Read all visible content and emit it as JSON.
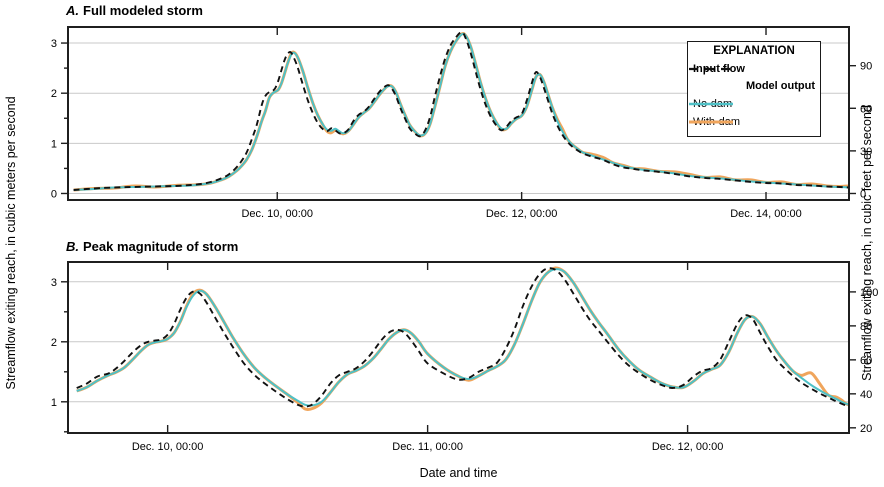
{
  "figure": {
    "ylabel_left": "Streamflow exiting reach, in cubic meters per second",
    "ylabel_right": "Streamflow exiting reach, in cubic feet per second",
    "xlabel": "Date and time",
    "colors": {
      "input": "#111111",
      "no_dam": "#4ec1c7",
      "with_dam": "#f0a55c",
      "grid": "#c9c9c9",
      "axis": "#1f1f1f",
      "text": "#000000"
    }
  },
  "legend": {
    "title": "EXPLANATION",
    "input_label": "Input flow",
    "group_label": "Model output",
    "no_dam_label": "No-dam",
    "with_dam_label": "With-dam"
  },
  "chart_data": [
    {
      "id": "a",
      "type": "line",
      "title_letter": "A.",
      "title_text": "Full modeled storm",
      "x_unit": "hours since Dec. 8, 00:00",
      "xlim": [
        6.9,
        160.3
      ],
      "ylim": [
        -0.13,
        3.32
      ],
      "ylim_right_cfs": [
        -4.6,
        117.2
      ],
      "cfs_per_cms": 35.3147,
      "grid_values": [
        0,
        1,
        2,
        3
      ],
      "yticks_left": [
        0,
        1,
        2,
        3
      ],
      "yticks_left_minor": [
        0.5,
        1.5,
        2.5
      ],
      "yticks_right_cfs": [
        0,
        30,
        60,
        90
      ],
      "xticks": [
        {
          "t": 48,
          "label": "Dec. 10, 00:00"
        },
        {
          "t": 96,
          "label": "Dec. 12, 00:00"
        },
        {
          "t": 144,
          "label": "Dec. 14, 00:00"
        }
      ],
      "x": [
        8,
        12,
        16,
        20,
        24,
        28,
        31,
        33,
        35,
        37,
        38.5,
        40,
        41,
        42,
        43,
        44,
        45,
        45.7,
        46.4,
        47,
        47.6,
        48.2,
        48.8,
        49.4,
        50,
        50.6,
        51.2,
        52,
        53,
        54,
        55,
        56,
        57,
        57.8,
        58.6,
        59.4,
        60.2,
        61,
        62,
        63,
        64,
        65,
        66,
        67,
        68,
        69,
        69.8,
        70.6,
        71.4,
        72.2,
        73,
        74,
        75,
        76,
        77,
        78,
        79,
        80,
        81,
        82,
        83,
        84.2,
        85,
        86,
        87,
        88,
        89,
        90,
        91,
        92,
        93,
        94,
        95,
        96,
        97,
        98,
        98.8,
        99.6,
        100.4,
        101.2,
        102,
        103,
        104,
        105,
        106,
        107,
        108,
        110,
        112,
        114,
        116,
        118,
        120,
        123,
        126,
        129,
        132,
        135,
        138,
        141,
        144,
        147,
        150,
        153,
        156,
        158.5,
        160.2
      ],
      "series": [
        {
          "key": "with_dam",
          "name": "With-dam",
          "values": [
            0.07,
            0.1,
            0.11,
            0.15,
            0.13,
            0.16,
            0.17,
            0.18,
            0.21,
            0.27,
            0.34,
            0.45,
            0.55,
            0.68,
            0.87,
            1.14,
            1.46,
            1.65,
            1.9,
            1.99,
            2.03,
            2.07,
            2.19,
            2.38,
            2.58,
            2.76,
            2.82,
            2.72,
            2.45,
            2.11,
            1.8,
            1.55,
            1.36,
            1.24,
            1.21,
            1.26,
            1.22,
            1.19,
            1.25,
            1.38,
            1.52,
            1.61,
            1.69,
            1.82,
            1.96,
            2.08,
            2.15,
            2.13,
            2.0,
            1.78,
            1.59,
            1.37,
            1.24,
            1.15,
            1.19,
            1.38,
            1.75,
            2.15,
            2.55,
            2.83,
            3.02,
            3.18,
            3.15,
            2.93,
            2.57,
            2.19,
            1.87,
            1.61,
            1.42,
            1.28,
            1.29,
            1.4,
            1.49,
            1.55,
            1.73,
            2.06,
            2.32,
            2.37,
            2.22,
            1.97,
            1.72,
            1.48,
            1.29,
            1.08,
            0.97,
            0.89,
            0.82,
            0.78,
            0.72,
            0.61,
            0.56,
            0.5,
            0.49,
            0.44,
            0.43,
            0.38,
            0.32,
            0.33,
            0.27,
            0.27,
            0.22,
            0.23,
            0.18,
            0.19,
            0.15,
            0.14,
            0.15
          ]
        },
        {
          "key": "no_dam",
          "name": "No-dam",
          "values": [
            0.07,
            0.09,
            0.12,
            0.13,
            0.14,
            0.15,
            0.16,
            0.18,
            0.21,
            0.27,
            0.34,
            0.45,
            0.55,
            0.68,
            0.87,
            1.14,
            1.46,
            1.65,
            1.9,
            1.99,
            2.03,
            2.07,
            2.19,
            2.38,
            2.58,
            2.74,
            2.81,
            2.72,
            2.45,
            2.11,
            1.8,
            1.55,
            1.37,
            1.27,
            1.25,
            1.29,
            1.24,
            1.2,
            1.25,
            1.38,
            1.52,
            1.61,
            1.69,
            1.82,
            1.96,
            2.08,
            2.14,
            2.13,
            2.0,
            1.78,
            1.59,
            1.37,
            1.24,
            1.16,
            1.19,
            1.38,
            1.75,
            2.15,
            2.55,
            2.83,
            3.02,
            3.17,
            3.15,
            2.93,
            2.57,
            2.19,
            1.87,
            1.61,
            1.42,
            1.3,
            1.29,
            1.4,
            1.49,
            1.55,
            1.73,
            2.06,
            2.32,
            2.37,
            2.22,
            1.97,
            1.72,
            1.45,
            1.24,
            1.08,
            0.97,
            0.89,
            0.82,
            0.75,
            0.68,
            0.61,
            0.54,
            0.5,
            0.47,
            0.44,
            0.4,
            0.35,
            0.32,
            0.3,
            0.27,
            0.24,
            0.22,
            0.2,
            0.18,
            0.16,
            0.14,
            0.13,
            0.12
          ]
        },
        {
          "key": "input",
          "name": "Input flow",
          "values": [
            0.07,
            0.1,
            0.12,
            0.13,
            0.14,
            0.15,
            0.17,
            0.19,
            0.23,
            0.3,
            0.38,
            0.52,
            0.65,
            0.82,
            1.08,
            1.38,
            1.78,
            1.95,
            2.02,
            2.04,
            2.1,
            2.25,
            2.45,
            2.65,
            2.78,
            2.82,
            2.72,
            2.52,
            2.18,
            1.86,
            1.6,
            1.4,
            1.28,
            1.24,
            1.3,
            1.26,
            1.2,
            1.2,
            1.28,
            1.45,
            1.57,
            1.63,
            1.73,
            1.88,
            2.02,
            2.12,
            2.16,
            2.08,
            1.92,
            1.7,
            1.52,
            1.3,
            1.2,
            1.14,
            1.25,
            1.52,
            1.95,
            2.35,
            2.7,
            2.95,
            3.1,
            3.22,
            3.1,
            2.8,
            2.42,
            2.05,
            1.75,
            1.52,
            1.36,
            1.26,
            1.33,
            1.45,
            1.52,
            1.58,
            1.85,
            2.2,
            2.42,
            2.32,
            2.1,
            1.85,
            1.6,
            1.36,
            1.17,
            1.03,
            0.93,
            0.86,
            0.8,
            0.73,
            0.67,
            0.58,
            0.52,
            0.49,
            0.46,
            0.43,
            0.39,
            0.34,
            0.31,
            0.29,
            0.26,
            0.23,
            0.21,
            0.2,
            0.17,
            0.16,
            0.14,
            0.13,
            0.12
          ]
        }
      ]
    },
    {
      "id": "b",
      "type": "line",
      "title_letter": "B.",
      "title_text": "Peak magnitude of storm",
      "x_unit": "hours since Dec. 8, 00:00",
      "xlim": [
        38.8,
        110.9
      ],
      "ylim": [
        0.48,
        3.33
      ],
      "ylim_right_cfs": [
        17.0,
        117.6
      ],
      "cfs_per_cms": 35.3147,
      "grid_values": [
        1,
        2,
        3
      ],
      "yticks_left": [
        1,
        2,
        3
      ],
      "yticks_left_minor": [
        0.5,
        1.5,
        2.5
      ],
      "yticks_right_cfs": [
        20,
        40,
        60,
        80,
        100
      ],
      "xticks": [
        {
          "t": 48,
          "label": "Dec. 10, 00:00"
        },
        {
          "t": 72,
          "label": "Dec. 11, 00:00"
        },
        {
          "t": 96,
          "label": "Dec. 12, 00:00"
        }
      ],
      "x": [
        39.6,
        40.5,
        41.5,
        42.5,
        43.2,
        44,
        44.8,
        45.6,
        46.2,
        46.8,
        47.4,
        48,
        48.6,
        49.2,
        49.8,
        50.4,
        51,
        51.6,
        52.4,
        53.2,
        54,
        55,
        56,
        57,
        58,
        59,
        60,
        60.7,
        61.4,
        62.2,
        63,
        63.8,
        64.6,
        65.4,
        66.2,
        67,
        67.7,
        68.4,
        69.1,
        69.8,
        70.5,
        71.2,
        72,
        73.5,
        74.8,
        75.8,
        76.7,
        77.6,
        78.4,
        79.2,
        80,
        80.8,
        81.6,
        82.3,
        83,
        83.8,
        84.6,
        85.4,
        86.2,
        87,
        87.8,
        88.6,
        89.6,
        90.6,
        91.6,
        92.6,
        93.6,
        94.6,
        95.6,
        96.6,
        97.4,
        98.2,
        99,
        99.8,
        100.6,
        101.3,
        102,
        102.7,
        103.4,
        104.2,
        105,
        105.8,
        106.5,
        107.4,
        108.2,
        109,
        109.7,
        110.2,
        110.6,
        110.9
      ],
      "series": [
        {
          "key": "with_dam",
          "name": "With-dam",
          "values": [
            1.18,
            1.24,
            1.35,
            1.44,
            1.49,
            1.57,
            1.71,
            1.86,
            1.95,
            1.99,
            2.01,
            2.05,
            2.15,
            2.35,
            2.62,
            2.81,
            2.86,
            2.79,
            2.58,
            2.33,
            2.08,
            1.8,
            1.57,
            1.4,
            1.26,
            1.13,
            0.99,
            0.88,
            0.89,
            0.98,
            1.15,
            1.33,
            1.46,
            1.52,
            1.6,
            1.73,
            1.88,
            2.04,
            2.15,
            2.2,
            2.14,
            2.0,
            1.8,
            1.57,
            1.43,
            1.36,
            1.43,
            1.52,
            1.59,
            1.7,
            1.95,
            2.3,
            2.68,
            2.97,
            3.14,
            3.23,
            3.17,
            3.0,
            2.77,
            2.53,
            2.32,
            2.13,
            1.88,
            1.68,
            1.52,
            1.41,
            1.31,
            1.25,
            1.24,
            1.35,
            1.47,
            1.54,
            1.61,
            1.83,
            2.15,
            2.37,
            2.42,
            2.3,
            2.08,
            1.85,
            1.66,
            1.5,
            1.44,
            1.48,
            1.3,
            1.11,
            1.08,
            1.03,
            0.97,
            0.95
          ]
        },
        {
          "key": "no_dam",
          "name": "No-dam",
          "values": [
            1.18,
            1.24,
            1.35,
            1.44,
            1.49,
            1.57,
            1.71,
            1.86,
            1.95,
            1.99,
            2.01,
            2.05,
            2.15,
            2.35,
            2.6,
            2.78,
            2.85,
            2.79,
            2.58,
            2.33,
            2.08,
            1.8,
            1.57,
            1.4,
            1.26,
            1.13,
            1.02,
            0.95,
            0.94,
            1.0,
            1.15,
            1.33,
            1.46,
            1.52,
            1.6,
            1.73,
            1.88,
            2.04,
            2.15,
            2.2,
            2.14,
            2.0,
            1.8,
            1.57,
            1.43,
            1.38,
            1.43,
            1.52,
            1.59,
            1.7,
            1.95,
            2.3,
            2.68,
            2.97,
            3.14,
            3.21,
            3.17,
            3.0,
            2.77,
            2.53,
            2.32,
            2.13,
            1.88,
            1.68,
            1.52,
            1.41,
            1.31,
            1.25,
            1.24,
            1.35,
            1.47,
            1.54,
            1.61,
            1.83,
            2.15,
            2.37,
            2.42,
            2.3,
            2.08,
            1.85,
            1.66,
            1.5,
            1.4,
            1.28,
            1.19,
            1.11,
            1.05,
            1.0,
            0.97,
            0.95
          ]
        },
        {
          "key": "input",
          "name": "Input flow",
          "values": [
            1.23,
            1.3,
            1.42,
            1.47,
            1.55,
            1.68,
            1.83,
            1.95,
            2.0,
            2.02,
            2.04,
            2.12,
            2.3,
            2.55,
            2.75,
            2.84,
            2.8,
            2.65,
            2.4,
            2.15,
            1.92,
            1.65,
            1.45,
            1.3,
            1.17,
            1.05,
            0.95,
            0.92,
            0.96,
            1.1,
            1.3,
            1.44,
            1.5,
            1.56,
            1.68,
            1.85,
            2.02,
            2.15,
            2.2,
            2.16,
            2.02,
            1.84,
            1.64,
            1.47,
            1.37,
            1.4,
            1.5,
            1.57,
            1.65,
            1.88,
            2.2,
            2.6,
            2.92,
            3.12,
            3.22,
            3.2,
            3.05,
            2.82,
            2.58,
            2.36,
            2.18,
            2.0,
            1.78,
            1.6,
            1.47,
            1.36,
            1.28,
            1.23,
            1.28,
            1.43,
            1.52,
            1.56,
            1.7,
            2.0,
            2.3,
            2.44,
            2.38,
            2.15,
            1.92,
            1.7,
            1.55,
            1.42,
            1.32,
            1.22,
            1.14,
            1.07,
            1.01,
            0.97,
            0.94,
            0.92
          ]
        }
      ]
    }
  ]
}
